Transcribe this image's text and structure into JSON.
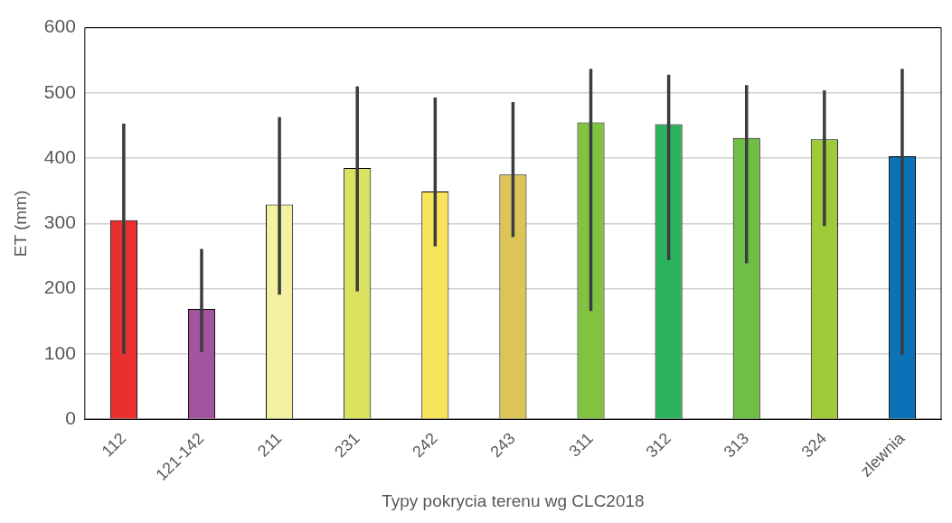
{
  "chart_data": {
    "type": "bar",
    "xlabel": "Typy pokrycia terenu wg CLC2018",
    "ylabel": "ET (mm)",
    "categories": [
      "112",
      "121-142",
      "211",
      "231",
      "242",
      "243",
      "311",
      "312",
      "313",
      "324",
      "zlewnia"
    ],
    "values": [
      305,
      169,
      329,
      385,
      349,
      375,
      455,
      452,
      431,
      429,
      403
    ],
    "colors": [
      "#e8302e",
      "#a3549f",
      "#f4f1a3",
      "#dbe25f",
      "#f8e45a",
      "#dcc556",
      "#81c341",
      "#2bb35e",
      "#6fbe46",
      "#9fcb3b",
      "#0b72b8"
    ],
    "errors": [
      [
        100,
        453
      ],
      [
        103,
        261
      ],
      [
        191,
        463
      ],
      [
        196,
        510
      ],
      [
        265,
        493
      ],
      [
        279,
        486
      ],
      [
        166,
        537
      ],
      [
        244,
        528
      ],
      [
        239,
        512
      ],
      [
        296,
        504
      ],
      [
        99,
        537
      ]
    ],
    "ylim": [
      0,
      600
    ],
    "yticks": [
      0,
      100,
      200,
      300,
      400,
      500,
      600
    ],
    "grid": "y",
    "legend": false
  }
}
